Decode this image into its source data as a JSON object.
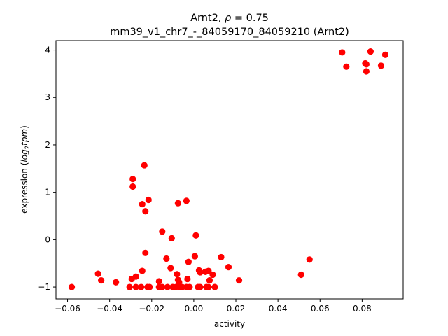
{
  "chart_data": {
    "type": "scatter",
    "title_prefix": "Arnt2, ",
    "title_rho_symbol": "ρ",
    "title_rho_value": " = 0.75",
    "subtitle": "mm39_v1_chr7_-_84059170_84059210 (Arnt2)",
    "xlabel": "activity",
    "ylabel_prefix": "expression (",
    "ylabel_log": "log",
    "ylabel_sub": "2",
    "ylabel_tpm": "tpm",
    "ylabel_suffix": ")",
    "xlim": [
      -0.0655,
      0.0995
    ],
    "ylim": [
      -1.25,
      4.2
    ],
    "x_ticks": [
      -0.06,
      -0.04,
      -0.02,
      0.0,
      0.02,
      0.04,
      0.06,
      0.08
    ],
    "x_tick_labels": [
      "−0.06",
      "−0.04",
      "−0.02",
      "0.00",
      "0.02",
      "0.04",
      "0.06",
      "0.08"
    ],
    "y_ticks": [
      -1,
      0,
      1,
      2,
      3,
      4
    ],
    "y_tick_labels": [
      "−1",
      "0",
      "1",
      "2",
      "3",
      "4"
    ],
    "grid": false,
    "marker_color": "#ff0000",
    "points": [
      {
        "x": -0.058,
        "y": -1.0
      },
      {
        "x": -0.0455,
        "y": -0.72
      },
      {
        "x": -0.044,
        "y": -0.86
      },
      {
        "x": -0.037,
        "y": -0.9
      },
      {
        "x": -0.0305,
        "y": -1.0
      },
      {
        "x": -0.0295,
        "y": -0.83
      },
      {
        "x": -0.029,
        "y": 1.28
      },
      {
        "x": -0.029,
        "y": 1.12
      },
      {
        "x": -0.0275,
        "y": -0.78
      },
      {
        "x": -0.0275,
        "y": -1.0
      },
      {
        "x": -0.025,
        "y": -1.0
      },
      {
        "x": -0.0245,
        "y": -0.66
      },
      {
        "x": -0.0245,
        "y": 0.75
      },
      {
        "x": -0.0235,
        "y": 1.57
      },
      {
        "x": -0.023,
        "y": 0.6
      },
      {
        "x": -0.023,
        "y": -0.28
      },
      {
        "x": -0.022,
        "y": -1.0
      },
      {
        "x": -0.021,
        "y": -1.0
      },
      {
        "x": -0.0215,
        "y": 0.84
      },
      {
        "x": -0.0165,
        "y": -0.88
      },
      {
        "x": -0.0165,
        "y": -1.0
      },
      {
        "x": -0.015,
        "y": -1.0
      },
      {
        "x": -0.015,
        "y": 0.17
      },
      {
        "x": -0.013,
        "y": -0.4
      },
      {
        "x": -0.0125,
        "y": -1.0
      },
      {
        "x": -0.011,
        "y": -0.6
      },
      {
        "x": -0.0105,
        "y": 0.03
      },
      {
        "x": -0.01,
        "y": -1.0
      },
      {
        "x": -0.0085,
        "y": -1.0
      },
      {
        "x": -0.008,
        "y": -0.73
      },
      {
        "x": -0.0075,
        "y": -0.85
      },
      {
        "x": -0.0075,
        "y": 0.77
      },
      {
        "x": -0.007,
        "y": -0.9
      },
      {
        "x": -0.0065,
        "y": -1.0
      },
      {
        "x": -0.0055,
        "y": -1.0
      },
      {
        "x": -0.0035,
        "y": 0.82
      },
      {
        "x": -0.0035,
        "y": -1.0
      },
      {
        "x": -0.003,
        "y": -0.83
      },
      {
        "x": -0.0025,
        "y": -0.47
      },
      {
        "x": -0.002,
        "y": -1.0
      },
      {
        "x": 0.0005,
        "y": -0.35
      },
      {
        "x": 0.001,
        "y": 0.09
      },
      {
        "x": 0.002,
        "y": -1.0
      },
      {
        "x": 0.003,
        "y": -1.0
      },
      {
        "x": 0.0025,
        "y": -0.65
      },
      {
        "x": 0.003,
        "y": -0.69
      },
      {
        "x": 0.0055,
        "y": -0.68
      },
      {
        "x": 0.006,
        "y": -1.0
      },
      {
        "x": 0.007,
        "y": -0.66
      },
      {
        "x": 0.007,
        "y": -1.0
      },
      {
        "x": 0.0075,
        "y": -0.86
      },
      {
        "x": 0.009,
        "y": -0.74
      },
      {
        "x": 0.01,
        "y": -1.0
      },
      {
        "x": 0.013,
        "y": -0.37
      },
      {
        "x": 0.0165,
        "y": -0.58
      },
      {
        "x": 0.0215,
        "y": -0.86
      },
      {
        "x": 0.051,
        "y": -0.74
      },
      {
        "x": 0.055,
        "y": -0.42
      },
      {
        "x": 0.0705,
        "y": 3.95
      },
      {
        "x": 0.0725,
        "y": 3.65
      },
      {
        "x": 0.0815,
        "y": 3.72
      },
      {
        "x": 0.082,
        "y": 3.7
      },
      {
        "x": 0.082,
        "y": 3.55
      },
      {
        "x": 0.084,
        "y": 3.97
      },
      {
        "x": 0.089,
        "y": 3.67
      },
      {
        "x": 0.091,
        "y": 3.9
      }
    ]
  }
}
